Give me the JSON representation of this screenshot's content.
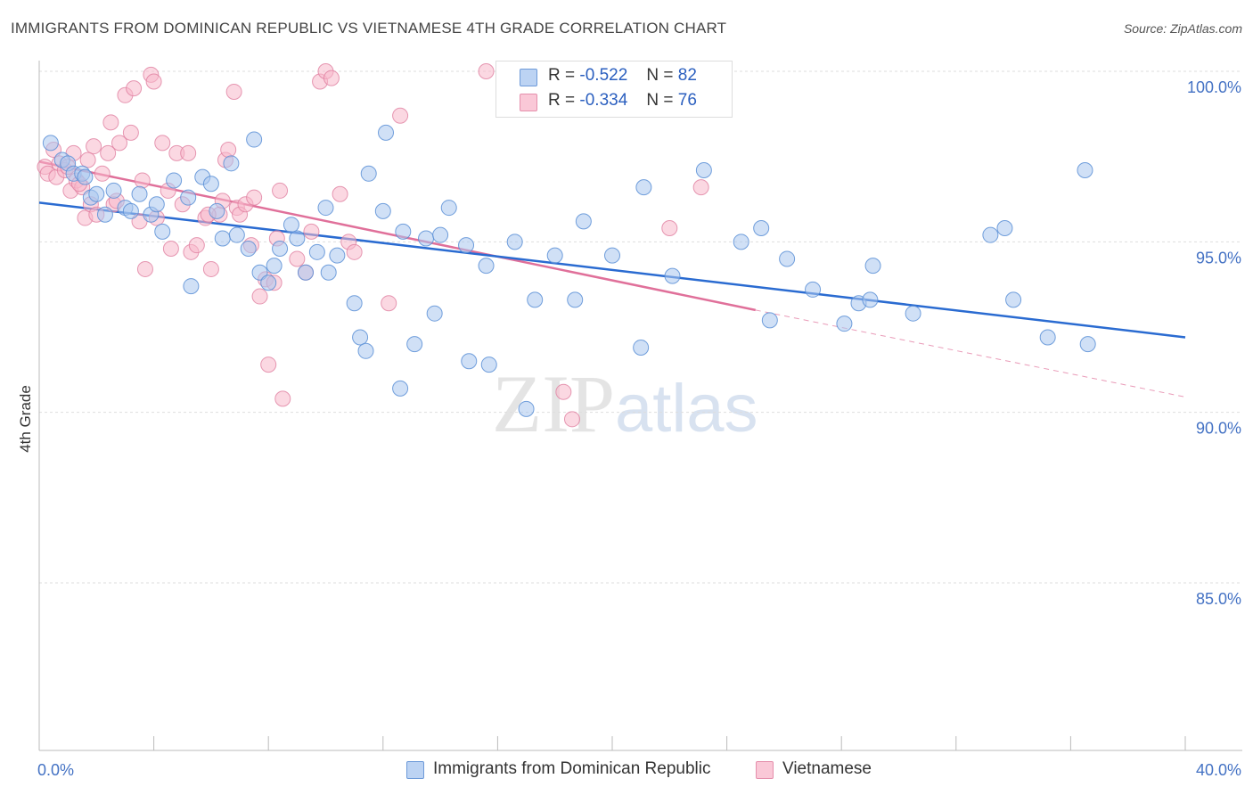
{
  "title": "IMMIGRANTS FROM DOMINICAN REPUBLIC VS VIETNAMESE 4TH GRADE CORRELATION CHART",
  "source": "Source: ZipAtlas.com",
  "watermark": {
    "zip": "ZIP",
    "atlas": "atlas"
  },
  "legend": {
    "r_label": "R =",
    "n_label": "N =",
    "series1": {
      "r": "-0.522",
      "n": "82"
    },
    "series2": {
      "r": "-0.334",
      "n": "76"
    }
  },
  "bottom_legend": {
    "series1": "Immigrants from Dominican Republic",
    "series2": "Vietnamese"
  },
  "colors": {
    "series1_fill": "#a9c6ef",
    "series1_stroke": "#5b8fd6",
    "series1_line": "#2a6bd1",
    "series2_fill": "#f7b8cb",
    "series2_stroke": "#e07fa0",
    "series2_line": "#e0709a",
    "grid": "#dddddd",
    "tick_text": "#4472c4"
  },
  "chart_data": {
    "type": "scatter",
    "title": "IMMIGRANTS FROM DOMINICAN REPUBLIC VS VIETNAMESE 4TH GRADE CORRELATION CHART",
    "xlabel": "",
    "ylabel": "4th Grade",
    "xlim": [
      0,
      40
    ],
    "ylim": [
      80.5,
      101.0
    ],
    "x_tick_labels": [
      {
        "value": 0,
        "label": "0.0%"
      },
      {
        "value": 40,
        "label": "40.0%"
      }
    ],
    "y_tick_labels": [
      {
        "value": 100,
        "label": "100.0%"
      },
      {
        "value": 95,
        "label": "95.0%"
      },
      {
        "value": 90,
        "label": "90.0%"
      },
      {
        "value": 85,
        "label": "85.0%"
      }
    ],
    "grid": true,
    "legend_position": "top-center",
    "series": [
      {
        "name": "Immigrants from Dominican Republic",
        "trend": {
          "x0": 0,
          "y0": 96.15,
          "x1": 40,
          "y1": 92.2
        },
        "points": [
          [
            0.4,
            97.9
          ],
          [
            0.8,
            97.4
          ],
          [
            1.0,
            97.3
          ],
          [
            1.2,
            97.0
          ],
          [
            1.5,
            97.0
          ],
          [
            1.6,
            96.9
          ],
          [
            1.8,
            96.3
          ],
          [
            2.0,
            96.4
          ],
          [
            2.3,
            95.8
          ],
          [
            2.6,
            96.5
          ],
          [
            3.0,
            96.0
          ],
          [
            3.2,
            95.9
          ],
          [
            3.5,
            96.4
          ],
          [
            3.9,
            95.8
          ],
          [
            4.1,
            96.1
          ],
          [
            4.3,
            95.3
          ],
          [
            4.7,
            96.8
          ],
          [
            5.2,
            96.3
          ],
          [
            5.3,
            93.7
          ],
          [
            5.7,
            96.9
          ],
          [
            6.0,
            96.7
          ],
          [
            6.2,
            95.9
          ],
          [
            6.4,
            95.1
          ],
          [
            6.7,
            97.3
          ],
          [
            6.9,
            95.2
          ],
          [
            7.3,
            94.8
          ],
          [
            7.5,
            98.0
          ],
          [
            7.7,
            94.1
          ],
          [
            8.0,
            93.8
          ],
          [
            8.2,
            94.3
          ],
          [
            8.4,
            94.8
          ],
          [
            8.8,
            95.5
          ],
          [
            9.0,
            95.1
          ],
          [
            9.3,
            94.1
          ],
          [
            9.7,
            94.7
          ],
          [
            10.0,
            96.0
          ],
          [
            10.1,
            94.1
          ],
          [
            10.4,
            94.6
          ],
          [
            11.0,
            93.2
          ],
          [
            11.2,
            92.2
          ],
          [
            11.4,
            91.8
          ],
          [
            11.5,
            97.0
          ],
          [
            12.0,
            95.9
          ],
          [
            12.1,
            98.2
          ],
          [
            12.6,
            90.7
          ],
          [
            12.7,
            95.3
          ],
          [
            13.1,
            92.0
          ],
          [
            13.5,
            95.1
          ],
          [
            13.8,
            92.9
          ],
          [
            14.0,
            95.2
          ],
          [
            14.3,
            96.0
          ],
          [
            14.9,
            94.9
          ],
          [
            15.0,
            91.5
          ],
          [
            15.6,
            94.3
          ],
          [
            15.7,
            91.4
          ],
          [
            16.6,
            95.0
          ],
          [
            17.0,
            90.1
          ],
          [
            17.3,
            93.3
          ],
          [
            18.0,
            94.6
          ],
          [
            18.7,
            93.3
          ],
          [
            19.0,
            95.6
          ],
          [
            20.0,
            94.6
          ],
          [
            21.1,
            96.6
          ],
          [
            21.0,
            91.9
          ],
          [
            22.1,
            94.0
          ],
          [
            23.2,
            97.1
          ],
          [
            24.5,
            95.0
          ],
          [
            25.2,
            95.4
          ],
          [
            25.5,
            92.7
          ],
          [
            26.1,
            94.5
          ],
          [
            27.0,
            93.6
          ],
          [
            28.1,
            92.6
          ],
          [
            28.6,
            93.2
          ],
          [
            29.0,
            93.3
          ],
          [
            29.1,
            94.3
          ],
          [
            30.5,
            92.9
          ],
          [
            33.2,
            95.2
          ],
          [
            33.7,
            95.4
          ],
          [
            34.0,
            93.3
          ],
          [
            35.2,
            92.2
          ],
          [
            36.6,
            92.0
          ],
          [
            36.5,
            97.1
          ]
        ]
      },
      {
        "name": "Vietnamese",
        "trend": {
          "x0": 0,
          "y0": 97.35,
          "x1": 25.0,
          "y1": 93.0
        },
        "trend_extension": {
          "x0": 25.0,
          "y0": 93.0,
          "x1": 40,
          "y1": 90.45
        },
        "points": [
          [
            0.2,
            97.2
          ],
          [
            0.3,
            97.0
          ],
          [
            0.5,
            97.7
          ],
          [
            0.6,
            96.9
          ],
          [
            0.7,
            97.3
          ],
          [
            0.9,
            97.1
          ],
          [
            1.0,
            97.2
          ],
          [
            1.1,
            96.5
          ],
          [
            1.2,
            97.6
          ],
          [
            1.3,
            96.8
          ],
          [
            1.5,
            96.6
          ],
          [
            1.6,
            95.7
          ],
          [
            1.8,
            96.1
          ],
          [
            1.9,
            97.8
          ],
          [
            2.0,
            95.8
          ],
          [
            2.2,
            97.0
          ],
          [
            2.4,
            97.6
          ],
          [
            2.5,
            98.5
          ],
          [
            2.6,
            96.1
          ],
          [
            2.8,
            97.9
          ],
          [
            3.0,
            99.3
          ],
          [
            3.2,
            98.2
          ],
          [
            3.3,
            99.5
          ],
          [
            3.5,
            95.6
          ],
          [
            3.7,
            94.2
          ],
          [
            3.9,
            99.9
          ],
          [
            4.0,
            99.7
          ],
          [
            4.3,
            97.9
          ],
          [
            4.5,
            96.5
          ],
          [
            4.8,
            97.6
          ],
          [
            5.0,
            96.1
          ],
          [
            5.2,
            97.6
          ],
          [
            5.3,
            94.7
          ],
          [
            5.5,
            94.9
          ],
          [
            5.8,
            95.7
          ],
          [
            6.0,
            94.2
          ],
          [
            6.3,
            95.8
          ],
          [
            6.5,
            97.4
          ],
          [
            6.6,
            97.7
          ],
          [
            6.8,
            99.4
          ],
          [
            6.9,
            96.0
          ],
          [
            7.0,
            95.8
          ],
          [
            7.2,
            96.1
          ],
          [
            7.4,
            94.9
          ],
          [
            7.5,
            96.3
          ],
          [
            7.7,
            93.4
          ],
          [
            7.9,
            93.9
          ],
          [
            8.0,
            91.4
          ],
          [
            8.2,
            93.8
          ],
          [
            8.3,
            95.1
          ],
          [
            8.4,
            96.5
          ],
          [
            8.5,
            90.4
          ],
          [
            9.0,
            94.5
          ],
          [
            9.3,
            94.1
          ],
          [
            9.5,
            95.3
          ],
          [
            9.8,
            99.7
          ],
          [
            10.0,
            100.0
          ],
          [
            10.2,
            99.8
          ],
          [
            10.5,
            96.4
          ],
          [
            10.8,
            95.0
          ],
          [
            11.0,
            94.7
          ],
          [
            12.2,
            93.2
          ],
          [
            12.6,
            98.7
          ],
          [
            15.6,
            100.0
          ],
          [
            18.3,
            90.6
          ],
          [
            18.6,
            89.8
          ],
          [
            22.0,
            95.4
          ],
          [
            23.1,
            96.6
          ],
          [
            1.4,
            96.7
          ],
          [
            2.7,
            96.2
          ],
          [
            4.1,
            95.7
          ],
          [
            3.6,
            96.8
          ],
          [
            5.9,
            95.8
          ],
          [
            6.4,
            96.2
          ],
          [
            1.7,
            97.4
          ],
          [
            4.6,
            94.8
          ]
        ]
      }
    ]
  }
}
